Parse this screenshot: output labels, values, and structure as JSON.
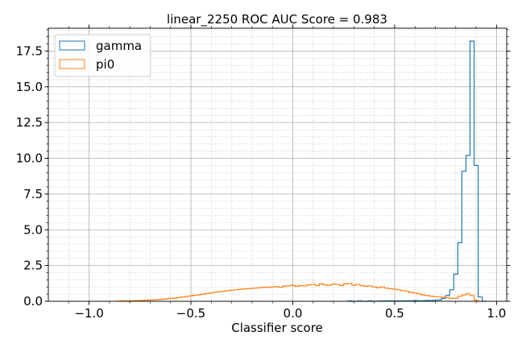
{
  "chart_data": {
    "type": "histogram",
    "title": "linear_2250 ROC AUC Score = 0.983",
    "xlabel": "Classifier score",
    "ylabel": "",
    "xlim": [
      -1.2,
      1.05
    ],
    "ylim": [
      0,
      19.1
    ],
    "xticks": [
      -1.0,
      -0.5,
      0.0,
      0.5,
      1.0
    ],
    "xtick_labels": [
      "−1.0",
      "−0.5",
      "0.0",
      "0.5",
      "1.0"
    ],
    "yticks": [
      0.0,
      2.5,
      5.0,
      7.5,
      10.0,
      12.5,
      15.0,
      17.5
    ],
    "ytick_labels": [
      "0.0",
      "2.5",
      "5.0",
      "7.5",
      "10.0",
      "12.5",
      "15.0",
      "17.5"
    ],
    "grid": true,
    "minor_grid": true,
    "legend_position": "top-left",
    "series": [
      {
        "name": "gamma",
        "color": "#1f77b4",
        "x": [
          0.28,
          0.3,
          0.33,
          0.36,
          0.38,
          0.4,
          0.43,
          0.46,
          0.48,
          0.5,
          0.53,
          0.56,
          0.58,
          0.6,
          0.63,
          0.66,
          0.68,
          0.7,
          0.72,
          0.74,
          0.76,
          0.78,
          0.8,
          0.82,
          0.84,
          0.86,
          0.88,
          0.9,
          0.92,
          0.94
        ],
        "y": [
          0.02,
          0.0,
          0.02,
          0.0,
          0.03,
          0.0,
          0.02,
          0.03,
          0.04,
          0.02,
          0.03,
          0.04,
          0.03,
          0.05,
          0.04,
          0.06,
          0.05,
          0.08,
          0.1,
          0.2,
          0.4,
          0.8,
          1.9,
          4.1,
          9.1,
          10.2,
          18.2,
          9.5,
          0.3,
          0.0
        ]
      },
      {
        "name": "pi0",
        "color": "#ff7f0e",
        "x": [
          -0.86,
          -0.84,
          -0.82,
          -0.8,
          -0.78,
          -0.76,
          -0.74,
          -0.72,
          -0.7,
          -0.68,
          -0.66,
          -0.64,
          -0.62,
          -0.6,
          -0.58,
          -0.56,
          -0.54,
          -0.52,
          -0.5,
          -0.48,
          -0.46,
          -0.44,
          -0.42,
          -0.4,
          -0.38,
          -0.36,
          -0.34,
          -0.32,
          -0.3,
          -0.28,
          -0.26,
          -0.24,
          -0.22,
          -0.2,
          -0.18,
          -0.16,
          -0.14,
          -0.12,
          -0.1,
          -0.08,
          -0.06,
          -0.04,
          -0.02,
          0.0,
          0.02,
          0.04,
          0.06,
          0.08,
          0.1,
          0.12,
          0.14,
          0.16,
          0.18,
          0.2,
          0.22,
          0.24,
          0.26,
          0.28,
          0.3,
          0.32,
          0.34,
          0.36,
          0.38,
          0.4,
          0.42,
          0.44,
          0.46,
          0.48,
          0.5,
          0.52,
          0.54,
          0.56,
          0.58,
          0.6,
          0.62,
          0.64,
          0.66,
          0.68,
          0.7,
          0.72,
          0.74,
          0.76,
          0.78,
          0.8,
          0.82,
          0.84,
          0.86,
          0.88,
          0.9,
          0.92
        ],
        "y": [
          0.01,
          0.02,
          0.03,
          0.04,
          0.04,
          0.05,
          0.06,
          0.07,
          0.09,
          0.1,
          0.12,
          0.14,
          0.17,
          0.2,
          0.22,
          0.26,
          0.3,
          0.34,
          0.38,
          0.42,
          0.45,
          0.5,
          0.55,
          0.58,
          0.63,
          0.67,
          0.7,
          0.74,
          0.77,
          0.8,
          0.83,
          0.86,
          0.88,
          0.9,
          0.92,
          0.95,
          0.97,
          0.98,
          1.0,
          1.02,
          0.98,
          1.05,
          1.08,
          1.12,
          1.05,
          1.1,
          1.08,
          1.15,
          1.18,
          1.1,
          1.22,
          1.15,
          1.12,
          1.2,
          1.18,
          1.1,
          1.22,
          1.25,
          1.12,
          1.18,
          1.1,
          1.05,
          1.08,
          1.0,
          0.95,
          1.0,
          0.92,
          0.88,
          0.85,
          0.8,
          0.75,
          0.7,
          0.62,
          0.58,
          0.52,
          0.45,
          0.4,
          0.36,
          0.32,
          0.3,
          0.28,
          0.25,
          0.22,
          0.2,
          0.35,
          0.45,
          0.52,
          0.4,
          0.08,
          0.0
        ]
      }
    ]
  }
}
